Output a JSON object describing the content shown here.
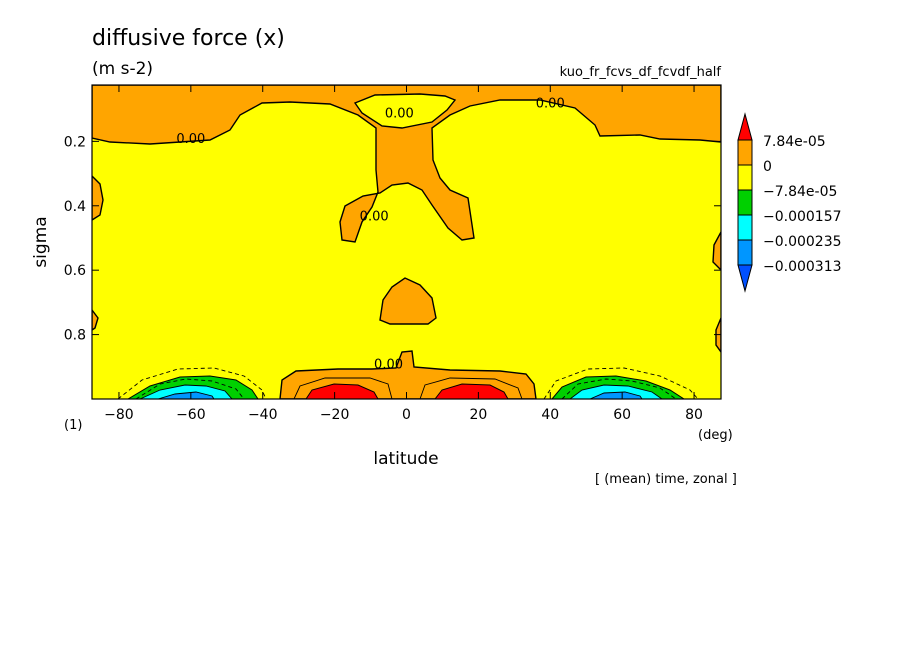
{
  "header": {
    "title": "diffusive force (x)",
    "units": "(m s-2)",
    "experiment": "kuo_fr_fcvs_df_fcvdf_half",
    "panel_index": "(1)",
    "x_unit": "(deg)",
    "footer": "[ (mean) time, zonal ]"
  },
  "chart_data": {
    "type": "heatmap",
    "title": "diffusive force (x)",
    "xlabel": "latitude",
    "ylabel": "sigma",
    "xlim": [
      -87.5,
      87.5
    ],
    "ylim": [
      1.0,
      0.025
    ],
    "y_axis_inverted": true,
    "x_ticks": [
      -80,
      -60,
      -40,
      -20,
      0,
      20,
      40,
      60,
      80
    ],
    "x_tick_labels": [
      "−80",
      "−60",
      "−40",
      "−20",
      "0",
      "20",
      "40",
      "60",
      "80"
    ],
    "y_ticks": [
      0.2,
      0.4,
      0.6,
      0.8
    ],
    "y_tick_labels": [
      "0.2",
      "0.4",
      "0.6",
      "0.8"
    ],
    "colorbar": {
      "levels": [
        7.84e-05,
        0,
        -7.84e-05,
        -0.000157,
        -0.000235,
        -0.000313
      ],
      "labels": [
        "7.84e-05",
        "0",
        "−7.84e-05",
        "−0.000157",
        "−0.000235",
        "−0.000313"
      ],
      "colors": [
        "#ff0000",
        "#ffa500",
        "#ffff00",
        "#00d000",
        "#00ffff",
        "#0096ff",
        "#0050ff"
      ],
      "extend": "both"
    },
    "contour_labels": [
      {
        "text": "0.00",
        "lat": -60,
        "sigma": 0.19
      },
      {
        "text": "0.00",
        "lat": -2,
        "sigma": 0.11
      },
      {
        "text": "0.00",
        "lat": 40,
        "sigma": 0.08
      },
      {
        "text": "0.00",
        "lat": -9,
        "sigma": 0.43
      },
      {
        "text": "0.00",
        "lat": -5,
        "sigma": 0.89
      }
    ]
  },
  "colors": {
    "positive": "#ffa500",
    "strong_positive": "#ff0000",
    "near_zero": "#ffff00",
    "negative_1": "#00d000",
    "negative_2": "#00ffff",
    "negative_3": "#0096ff"
  }
}
